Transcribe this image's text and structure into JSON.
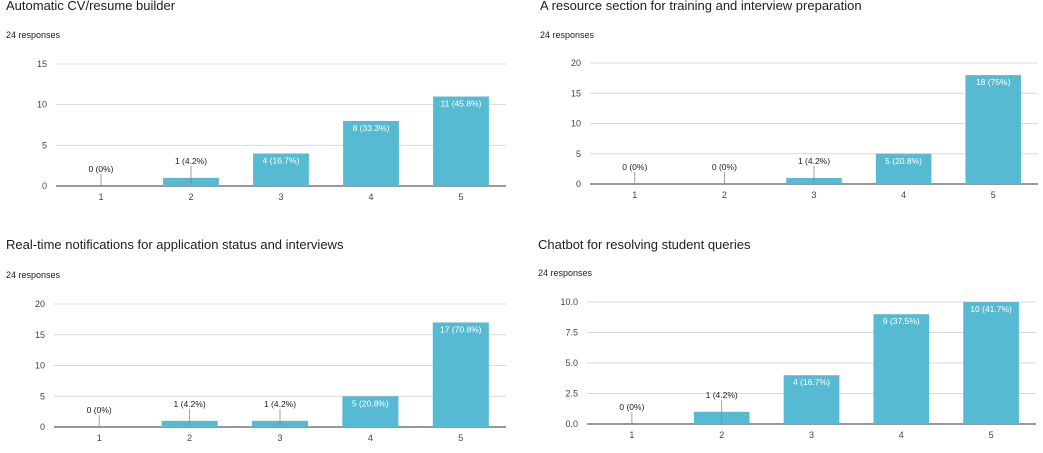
{
  "charts": [
    {
      "title": "Automatic CV/resume builder",
      "responses": "24 responses",
      "chart_data": {
        "type": "bar",
        "categories": [
          "1",
          "2",
          "3",
          "4",
          "5"
        ],
        "values": [
          0,
          1,
          4,
          8,
          11
        ],
        "labels": [
          "0 (0%)",
          "1 (4.2%)",
          "4 (16.7%)",
          "8 (33.3%)",
          "11 (45.8%)"
        ],
        "yticks": [
          "0",
          "5",
          "10",
          "15"
        ],
        "ylim": [
          0,
          15
        ],
        "color": "#56bbd2"
      }
    },
    {
      "title": "A resource section for training and interview preparation",
      "responses": "24 responses",
      "chart_data": {
        "type": "bar",
        "categories": [
          "1",
          "2",
          "3",
          "4",
          "5"
        ],
        "values": [
          0,
          0,
          1,
          5,
          18
        ],
        "labels": [
          "0 (0%)",
          "0 (0%)",
          "1 (4.2%)",
          "5 (20.8%)",
          "18 (75%)"
        ],
        "yticks": [
          "0",
          "5",
          "10",
          "15",
          "20"
        ],
        "ylim": [
          0,
          20
        ],
        "color": "#56bbd2"
      }
    },
    {
      "title": "Real-time notifications for application status and interviews",
      "responses": "24 responses",
      "chart_data": {
        "type": "bar",
        "categories": [
          "1",
          "2",
          "3",
          "4",
          "5"
        ],
        "values": [
          0,
          1,
          1,
          5,
          17
        ],
        "labels": [
          "0 (0%)",
          "1 (4.2%)",
          "1 (4.2%)",
          "5 (20.8%)",
          "17 (70.8%)"
        ],
        "yticks": [
          "0",
          "5",
          "10",
          "15",
          "20"
        ],
        "ylim": [
          0,
          20
        ],
        "color": "#56bbd2"
      }
    },
    {
      "title": "Chatbot for resolving student queries",
      "responses": "24 responses",
      "chart_data": {
        "type": "bar",
        "categories": [
          "1",
          "2",
          "3",
          "4",
          "5"
        ],
        "values": [
          0,
          1,
          4,
          9,
          10
        ],
        "labels": [
          "0 (0%)",
          "1 (4.2%)",
          "4 (16.7%)",
          "9 (37.5%)",
          "10 (41.7%)"
        ],
        "yticks": [
          "0.0",
          "2.5",
          "5.0",
          "7.5",
          "10.0"
        ],
        "ylim": [
          0,
          10
        ],
        "color": "#56bbd2"
      }
    }
  ]
}
